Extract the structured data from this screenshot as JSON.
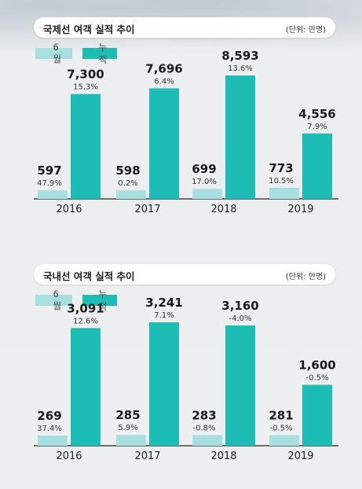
{
  "colors": {
    "june": "#a8dfe0",
    "cumulative": "#1dbdb6",
    "axis": "#222222"
  },
  "legend": {
    "june_label": "6월",
    "cumulative_label": "누적"
  },
  "international": {
    "title": "국제선 여객 실적 추이",
    "unit": "(단위: 만명)"
  },
  "domestic": {
    "title": "국내선 여객 실적 추이",
    "unit": "(단위: 만명)"
  },
  "chart_data": [
    {
      "type": "bar",
      "title": "국제선 여객 실적 추이",
      "unit": "(단위: 만명)",
      "categories": [
        "2016",
        "2017",
        "2018",
        "2019"
      ],
      "series": [
        {
          "name": "6월",
          "values": [
            597,
            598,
            699,
            773
          ],
          "value_labels": [
            "597",
            "598",
            "699",
            "773"
          ],
          "growth": [
            "47.9%",
            "0.2%",
            "17.0%",
            "10.5%"
          ]
        },
        {
          "name": "누적",
          "values": [
            7300,
            7696,
            8593,
            4556
          ],
          "value_labels": [
            "7,300",
            "7,696",
            "8,593",
            "4,556"
          ],
          "growth": [
            "15.3%",
            "6.4%",
            "13.6%",
            "7.9%"
          ]
        }
      ],
      "legend": "top-left",
      "grid": false
    },
    {
      "type": "bar",
      "title": "국내선 여객 실적 추이",
      "unit": "(단위: 만명)",
      "categories": [
        "2016",
        "2017",
        "2018",
        "2019"
      ],
      "series": [
        {
          "name": "6월",
          "values": [
            269,
            285,
            283,
            281
          ],
          "value_labels": [
            "269",
            "285",
            "283",
            "281"
          ],
          "growth": [
            "37.4%",
            "5.9%",
            "-0.8%",
            "-0.5%"
          ]
        },
        {
          "name": "누적",
          "values": [
            3091,
            3241,
            3160,
            1600
          ],
          "value_labels": [
            "3,091",
            "3,241",
            "3,160",
            "1,600"
          ],
          "growth": [
            "12.6%",
            "7.1%",
            "-4.0%",
            "-0.5%"
          ]
        }
      ],
      "legend": "top-left",
      "grid": false
    }
  ]
}
